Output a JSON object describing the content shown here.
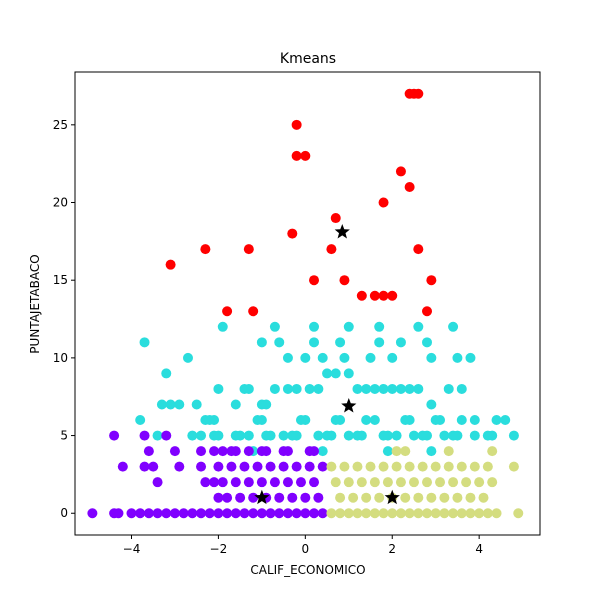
{
  "chart_data": {
    "type": "scatter",
    "title": "Kmeans",
    "xlabel": "CALIF_ECONOMICO",
    "ylabel": "PUNTAJETABACO",
    "xlim": [
      -5.3,
      5.4
    ],
    "ylim": [
      -1.4,
      28.4
    ],
    "x_ticks": [
      -4,
      -2,
      0,
      2,
      4
    ],
    "y_ticks": [
      0,
      5,
      10,
      15,
      20,
      25
    ],
    "grid": false,
    "colors": {
      "red": "#ff0000",
      "cyan": "#2adddd",
      "purple": "#8000ff",
      "yellow": "#d4dd80",
      "centroid": "#000000"
    },
    "series": [
      {
        "color_key": "red",
        "x": [
          2.4,
          2.5,
          2.6,
          -0.2,
          -0.2,
          0.0,
          2.2,
          2.4,
          1.8,
          0.7,
          -2.3,
          -1.3,
          -0.3,
          0.6,
          2.6,
          -3.1,
          0.2,
          0.9,
          2.9,
          -1.8,
          -1.2,
          1.3,
          1.6,
          1.8,
          2.0,
          2.8
        ],
        "y": [
          27,
          27,
          27,
          25,
          23,
          23,
          22,
          21,
          20,
          19,
          17,
          17,
          18,
          17,
          17,
          16,
          15,
          15,
          15,
          13,
          13,
          14,
          14,
          14,
          14,
          13
        ]
      },
      {
        "color_key": "cyan",
        "x": [
          -3.7,
          -2.7,
          -3.2,
          -3.1,
          -2.9,
          -3.3,
          -2.5,
          -2.3,
          -2.1,
          -2.0,
          -1.6,
          -1.4,
          -1.3,
          -1.0,
          -0.9,
          -0.7,
          -0.4,
          -0.2,
          0.1,
          0.3,
          0.5,
          0.7,
          1.0,
          1.2,
          1.4,
          1.6,
          1.8,
          2.0,
          2.2,
          2.4,
          2.6,
          2.9,
          3.3,
          3.6,
          -0.4,
          0.0,
          0.4,
          0.9,
          1.5,
          2.0,
          2.9,
          3.5,
          3.8,
          -1.0,
          -0.6,
          0.2,
          0.8,
          1.7,
          2.2,
          2.8,
          -2.1,
          -1.5,
          -0.8,
          -0.3,
          0.6,
          1.3,
          1.9,
          2.5,
          3.4,
          3.9,
          -3.4,
          -2.6,
          -2.0,
          -1.3,
          -0.5,
          0.3,
          1.0,
          1.8,
          2.7,
          3.2,
          4.3,
          4.8,
          -3.8,
          -2.2,
          -1.1,
          0.0,
          0.8,
          1.6,
          2.4,
          3.0,
          3.6,
          4.4,
          -2.4,
          -1.6,
          -0.9,
          -0.2,
          0.5,
          1.2,
          2.1,
          2.8,
          3.5,
          4.2,
          -1.0,
          -0.1,
          0.7,
          1.4,
          2.3,
          3.1,
          3.9,
          4.6,
          -1.9,
          -0.7,
          0.2,
          1.0,
          1.7,
          2.6,
          3.4,
          -1.2,
          0.4,
          1.9,
          2.9
        ],
        "y": [
          11,
          10,
          9,
          7,
          7,
          7,
          7,
          6,
          6,
          8,
          7,
          8,
          8,
          7,
          7,
          8,
          8,
          8,
          8,
          8,
          9,
          9,
          9,
          8,
          8,
          8,
          8,
          8,
          8,
          8,
          8,
          7,
          8,
          8,
          10,
          10,
          10,
          10,
          10,
          10,
          10,
          10,
          10,
          11,
          11,
          11,
          11,
          11,
          11,
          11,
          5,
          5,
          5,
          5,
          5,
          5,
          5,
          5,
          5,
          5,
          5,
          5,
          5,
          5,
          5,
          5,
          5,
          5,
          5,
          5,
          5,
          5,
          6,
          6,
          6,
          6,
          6,
          6,
          6,
          6,
          6,
          6,
          5,
          5,
          5,
          5,
          5,
          5,
          5,
          5,
          5,
          5,
          6,
          6,
          6,
          6,
          6,
          6,
          6,
          6,
          12,
          12,
          12,
          12,
          12,
          12,
          12,
          4,
          4,
          4,
          4
        ]
      },
      {
        "color_key": "purple",
        "x": [
          -4.9,
          -4.4,
          -4.3,
          -4.0,
          -3.8,
          -3.6,
          -3.4,
          -3.2,
          -3.0,
          -2.8,
          -2.6,
          -2.4,
          -2.2,
          -2.0,
          -1.8,
          -1.6,
          -1.4,
          -1.2,
          -1.0,
          -0.8,
          -0.6,
          -0.4,
          -0.2,
          0.0,
          0.2,
          0.4,
          -4.2,
          -3.7,
          -3.5,
          -2.9,
          -2.4,
          -2.0,
          -1.7,
          -1.4,
          -1.1,
          -0.8,
          -0.5,
          -0.2,
          0.1,
          0.4,
          -2.3,
          -2.1,
          -1.9,
          -1.6,
          -1.3,
          -1.0,
          -0.7,
          -0.4,
          -0.1,
          0.2,
          -3.4,
          -2.0,
          -1.8,
          -1.5,
          -1.2,
          -0.9,
          -0.6,
          -0.3,
          0.0,
          0.3,
          -4.4,
          -3.7,
          -3.2,
          -2.1,
          -1.7,
          -1.3,
          -0.9,
          -0.5,
          0.2,
          -3.6,
          -3.0,
          -2.4,
          -1.9,
          -1.6,
          -1.0,
          -0.4,
          0.1
        ],
        "y": [
          0,
          0,
          0,
          0,
          0,
          0,
          0,
          0,
          0,
          0,
          0,
          0,
          0,
          0,
          0,
          0,
          0,
          0,
          0,
          0,
          0,
          0,
          0,
          0,
          0,
          0,
          3,
          3,
          3,
          3,
          3,
          3,
          3,
          3,
          3,
          3,
          3,
          3,
          3,
          3,
          2,
          2,
          2,
          2,
          2,
          2,
          2,
          2,
          2,
          2,
          2,
          1,
          1,
          1,
          1,
          1,
          1,
          1,
          1,
          1,
          5,
          5,
          5,
          4,
          4,
          4,
          4,
          4,
          4,
          4,
          4,
          4,
          4,
          4,
          4,
          4,
          4
        ]
      },
      {
        "color_key": "yellow",
        "x": [
          0.6,
          0.8,
          1.0,
          1.2,
          1.4,
          1.6,
          1.8,
          2.0,
          2.2,
          2.4,
          2.6,
          2.8,
          3.0,
          3.2,
          3.4,
          3.6,
          3.8,
          4.0,
          4.2,
          4.4,
          4.9,
          0.6,
          0.9,
          1.2,
          1.5,
          1.8,
          2.1,
          2.4,
          2.7,
          3.0,
          3.3,
          3.6,
          3.9,
          4.2,
          4.8,
          0.7,
          1.0,
          1.3,
          1.6,
          1.9,
          2.2,
          2.5,
          2.8,
          3.1,
          3.4,
          3.7,
          4.0,
          4.3,
          0.8,
          1.1,
          1.4,
          1.7,
          2.0,
          2.3,
          2.6,
          2.9,
          3.2,
          3.5,
          3.8,
          4.1,
          2.1,
          2.3,
          3.3,
          4.3
        ],
        "y": [
          0,
          0,
          0,
          0,
          0,
          0,
          0,
          0,
          0,
          0,
          0,
          0,
          0,
          0,
          0,
          0,
          0,
          0,
          0,
          0,
          0,
          3,
          3,
          3,
          3,
          3,
          3,
          3,
          3,
          3,
          3,
          3,
          3,
          3,
          3,
          2,
          2,
          2,
          2,
          2,
          2,
          2,
          2,
          2,
          2,
          2,
          2,
          2,
          1,
          1,
          1,
          1,
          1,
          1,
          1,
          1,
          1,
          1,
          1,
          1,
          4,
          4,
          4,
          4
        ]
      }
    ],
    "centroids": {
      "color_key": "centroid",
      "x": [
        0.85,
        1.0,
        -1.0,
        2.0
      ],
      "y": [
        18.1,
        6.9,
        1.0,
        1.0
      ]
    }
  }
}
